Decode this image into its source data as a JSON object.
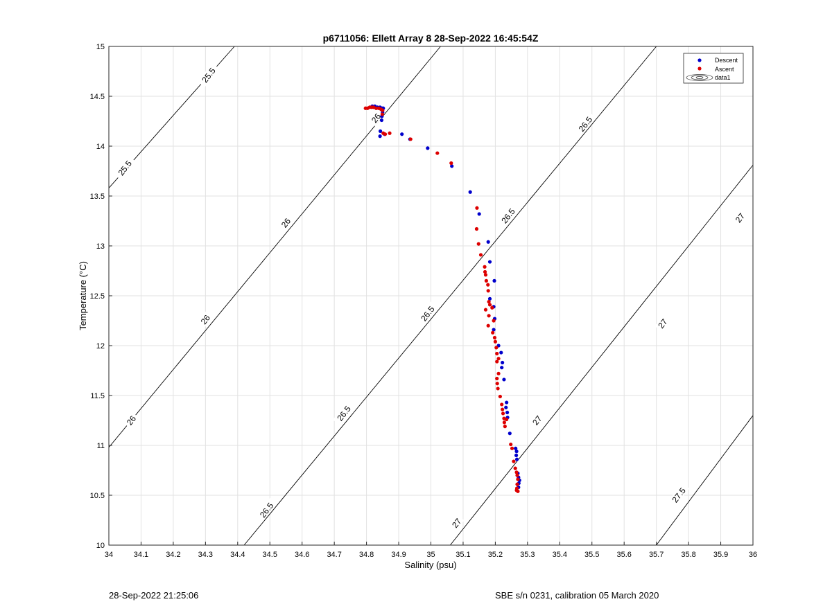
{
  "chart_data": {
    "type": "scatter",
    "title": "p6711056: Ellett Array 8 28-Sep-2022 16:45:54Z",
    "xlabel": "Salinity (psu)",
    "ylabel": "Temperature (°C)",
    "xlim": [
      34,
      36
    ],
    "ylim": [
      10,
      15
    ],
    "xticks": [
      34,
      34.1,
      34.2,
      34.3,
      34.4,
      34.5,
      34.6,
      34.7,
      34.8,
      34.9,
      35,
      35.1,
      35.2,
      35.3,
      35.4,
      35.5,
      35.6,
      35.7,
      35.8,
      35.9,
      36
    ],
    "yticks": [
      10,
      10.5,
      11,
      11.5,
      12,
      12.5,
      13,
      13.5,
      14,
      14.5,
      15
    ],
    "grid": true,
    "legend_placement": "top-right",
    "legend": [
      "Descent",
      "Ascent",
      "data1"
    ],
    "colors": {
      "descent": "#0000cc",
      "ascent": "#dd0000",
      "contour": "#000000",
      "grid": "#e2e2e2"
    },
    "series": [
      {
        "name": "Descent",
        "points": [
          [
            34.818,
            14.4
          ],
          [
            34.826,
            14.4
          ],
          [
            34.834,
            14.39
          ],
          [
            34.842,
            14.39
          ],
          [
            34.848,
            14.38
          ],
          [
            34.852,
            14.38
          ],
          [
            34.85,
            14.34
          ],
          [
            34.848,
            14.3
          ],
          [
            34.847,
            14.26
          ],
          [
            34.843,
            14.15
          ],
          [
            34.842,
            14.1
          ],
          [
            34.856,
            14.12
          ],
          [
            34.91,
            14.12
          ],
          [
            34.935,
            14.07
          ],
          [
            34.99,
            13.98
          ],
          [
            35.065,
            13.8
          ],
          [
            35.122,
            13.54
          ],
          [
            35.15,
            13.32
          ],
          [
            35.178,
            13.04
          ],
          [
            35.183,
            12.84
          ],
          [
            35.197,
            12.65
          ],
          [
            35.183,
            12.47
          ],
          [
            35.195,
            12.39
          ],
          [
            35.198,
            12.27
          ],
          [
            35.195,
            12.16
          ],
          [
            35.21,
            12.0
          ],
          [
            35.218,
            11.93
          ],
          [
            35.222,
            11.83
          ],
          [
            35.22,
            11.78
          ],
          [
            35.227,
            11.66
          ],
          [
            35.235,
            11.43
          ],
          [
            35.233,
            11.38
          ],
          [
            35.237,
            11.33
          ],
          [
            35.238,
            11.28
          ],
          [
            35.245,
            11.12
          ],
          [
            35.263,
            10.97
          ],
          [
            35.266,
            10.94
          ],
          [
            35.265,
            10.9
          ],
          [
            35.267,
            10.86
          ],
          [
            35.27,
            10.72
          ],
          [
            35.272,
            10.68
          ],
          [
            35.275,
            10.65
          ],
          [
            35.273,
            10.62
          ],
          [
            35.272,
            10.58
          ]
        ]
      },
      {
        "name": "Ascent",
        "points": [
          [
            34.797,
            14.38
          ],
          [
            34.803,
            14.38
          ],
          [
            34.81,
            14.39
          ],
          [
            34.816,
            14.39
          ],
          [
            34.822,
            14.39
          ],
          [
            34.83,
            14.38
          ],
          [
            34.838,
            14.38
          ],
          [
            34.845,
            14.37
          ],
          [
            34.85,
            14.36
          ],
          [
            34.849,
            14.32
          ],
          [
            34.852,
            14.13
          ],
          [
            34.858,
            14.12
          ],
          [
            34.872,
            14.13
          ],
          [
            34.937,
            14.07
          ],
          [
            35.02,
            13.93
          ],
          [
            35.063,
            13.83
          ],
          [
            35.143,
            13.38
          ],
          [
            35.142,
            13.17
          ],
          [
            35.148,
            13.02
          ],
          [
            35.155,
            12.91
          ],
          [
            35.167,
            12.79
          ],
          [
            35.168,
            12.74
          ],
          [
            35.17,
            12.71
          ],
          [
            35.172,
            12.65
          ],
          [
            35.177,
            12.61
          ],
          [
            35.178,
            12.55
          ],
          [
            35.18,
            12.44
          ],
          [
            35.183,
            12.41
          ],
          [
            35.19,
            12.38
          ],
          [
            35.17,
            12.36
          ],
          [
            35.18,
            12.3
          ],
          [
            35.195,
            12.25
          ],
          [
            35.178,
            12.2
          ],
          [
            35.192,
            12.13
          ],
          [
            35.198,
            12.08
          ],
          [
            35.2,
            12.04
          ],
          [
            35.203,
            11.98
          ],
          [
            35.205,
            11.92
          ],
          [
            35.21,
            11.87
          ],
          [
            35.205,
            11.84
          ],
          [
            35.21,
            11.72
          ],
          [
            35.205,
            11.67
          ],
          [
            35.206,
            11.62
          ],
          [
            35.208,
            11.57
          ],
          [
            35.215,
            11.49
          ],
          [
            35.22,
            11.41
          ],
          [
            35.222,
            11.36
          ],
          [
            35.224,
            11.32
          ],
          [
            35.227,
            11.27
          ],
          [
            35.228,
            11.23
          ],
          [
            35.23,
            11.19
          ],
          [
            35.235,
            11.26
          ],
          [
            35.248,
            11.01
          ],
          [
            35.252,
            10.97
          ],
          [
            35.257,
            10.84
          ],
          [
            35.262,
            10.77
          ],
          [
            35.266,
            10.73
          ],
          [
            35.268,
            10.7
          ],
          [
            35.27,
            10.66
          ],
          [
            35.268,
            10.61
          ],
          [
            35.267,
            10.57
          ],
          [
            35.266,
            10.55
          ],
          [
            35.27,
            10.54
          ]
        ]
      }
    ],
    "isopycnal_levels": [
      25.5,
      26,
      26.5,
      27,
      27.5
    ],
    "isopycnal_lines": [
      {
        "label": "25.5",
        "from": [
          34.0,
          13.58
        ],
        "to": [
          34.39,
          15.0
        ]
      },
      {
        "label": "26",
        "from": [
          34.0,
          10.98
        ],
        "to": [
          35.03,
          15.0
        ]
      },
      {
        "label": "26.5",
        "from": [
          34.42,
          10.0
        ],
        "to": [
          35.7,
          15.0
        ]
      },
      {
        "label": "27",
        "from": [
          35.06,
          10.0
        ],
        "to": [
          36.0,
          13.81
        ]
      },
      {
        "label": "27.5",
        "from": [
          35.7,
          10.0
        ],
        "to": [
          36.0,
          11.3
        ]
      }
    ],
    "contour_labels": [
      {
        "text": "25.5",
        "x": 34.31,
        "y": 14.71
      },
      {
        "text": "25.5",
        "x": 34.05,
        "y": 13.78
      },
      {
        "text": "26",
        "x": 34.83,
        "y": 14.28
      },
      {
        "text": "26",
        "x": 34.55,
        "y": 13.23
      },
      {
        "text": "26",
        "x": 34.3,
        "y": 12.26
      },
      {
        "text": "26",
        "x": 34.07,
        "y": 11.25
      },
      {
        "text": "26.5",
        "x": 35.48,
        "y": 14.22
      },
      {
        "text": "26.5",
        "x": 35.24,
        "y": 13.3
      },
      {
        "text": "26.5",
        "x": 34.99,
        "y": 12.32
      },
      {
        "text": "26.5",
        "x": 34.73,
        "y": 11.32
      },
      {
        "text": "26.5",
        "x": 34.49,
        "y": 10.35
      },
      {
        "text": "27",
        "x": 35.96,
        "y": 13.28
      },
      {
        "text": "27",
        "x": 35.72,
        "y": 12.22
      },
      {
        "text": "27",
        "x": 35.33,
        "y": 11.25
      },
      {
        "text": "27",
        "x": 35.08,
        "y": 10.22
      },
      {
        "text": "27.5",
        "x": 35.77,
        "y": 10.5
      }
    ]
  },
  "footer": {
    "left": "28-Sep-2022 21:25:06",
    "right": "SBE s/n 0231, calibration 05 March 2020"
  }
}
